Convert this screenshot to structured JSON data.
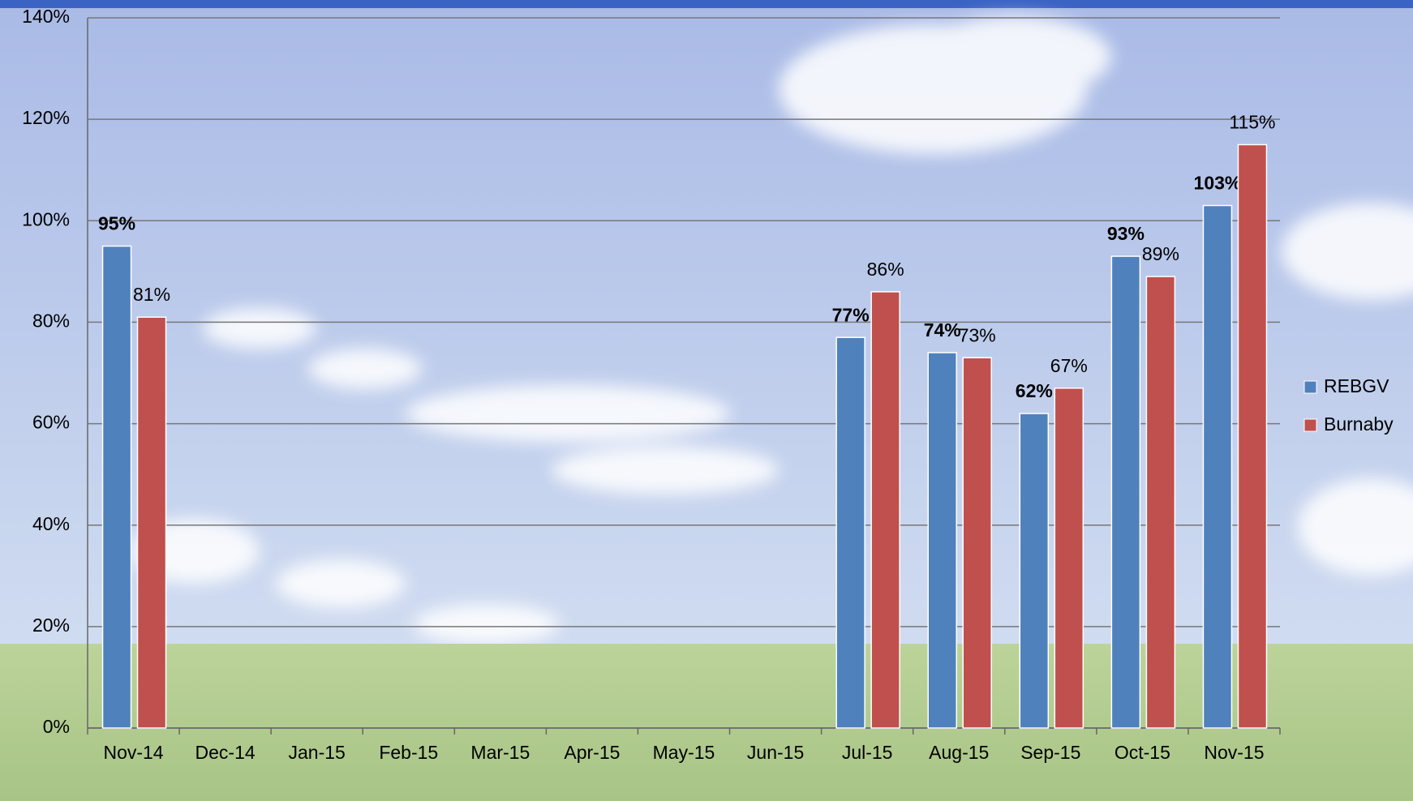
{
  "chart_data": {
    "type": "bar",
    "categories": [
      "Nov-14",
      "Dec-14",
      "Jan-15",
      "Feb-15",
      "Mar-15",
      "Apr-15",
      "May-15",
      "Jun-15",
      "Jul-15",
      "Aug-15",
      "Sep-15",
      "Oct-15",
      "Nov-15"
    ],
    "series": [
      {
        "name": "REBGV",
        "color": "#4f81bd",
        "values": [
          95,
          null,
          null,
          null,
          null,
          null,
          null,
          null,
          77,
          74,
          62,
          93,
          103
        ],
        "value_labels": [
          "95%",
          null,
          null,
          null,
          null,
          null,
          null,
          null,
          "77%",
          "74%",
          "62%",
          "93%",
          "103%"
        ]
      },
      {
        "name": "Burnaby",
        "color": "#c0504d",
        "values": [
          81,
          null,
          null,
          null,
          null,
          null,
          null,
          null,
          86,
          73,
          67,
          89,
          115
        ],
        "value_labels": [
          "81%",
          null,
          null,
          null,
          null,
          null,
          null,
          null,
          "86%",
          "73%",
          "67%",
          "89%",
          "115%"
        ]
      }
    ],
    "ylim": [
      0,
      140
    ],
    "yticks": [
      {
        "value": 0,
        "label": "0%"
      },
      {
        "value": 20,
        "label": "20%"
      },
      {
        "value": 40,
        "label": "40%"
      },
      {
        "value": 60,
        "label": "60%"
      },
      {
        "value": 80,
        "label": "80%"
      },
      {
        "value": 100,
        "label": "100%"
      },
      {
        "value": 120,
        "label": "120%"
      },
      {
        "value": 140,
        "label": "140%"
      }
    ],
    "grid": true,
    "legend": "right"
  }
}
